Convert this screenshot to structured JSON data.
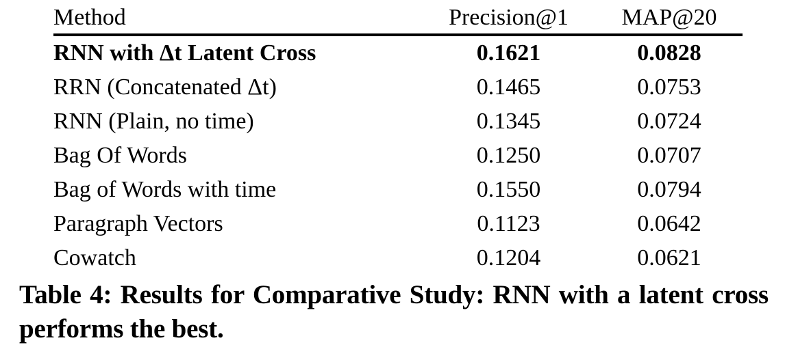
{
  "chart_data": {
    "type": "table",
    "columns": [
      "Method",
      "Precision@1",
      "MAP@20"
    ],
    "rows": [
      {
        "method": "RNN with Δt Latent Cross",
        "precision_at_1": "0.1621",
        "map_at_20": "0.0828",
        "bold": true
      },
      {
        "method": "RRN (Concatenated Δt)",
        "precision_at_1": "0.1465",
        "map_at_20": "0.0753",
        "bold": false
      },
      {
        "method": "RNN (Plain, no time)",
        "precision_at_1": "0.1345",
        "map_at_20": "0.0724",
        "bold": false
      },
      {
        "method": "Bag Of Words",
        "precision_at_1": "0.1250",
        "map_at_20": "0.0707",
        "bold": false
      },
      {
        "method": "Bag of Words with time",
        "precision_at_1": "0.1550",
        "map_at_20": "0.0794",
        "bold": false
      },
      {
        "method": "Paragraph Vectors",
        "precision_at_1": "0.1123",
        "map_at_20": "0.0642",
        "bold": false
      },
      {
        "method": "Cowatch",
        "precision_at_1": "0.1204",
        "map_at_20": "0.0621",
        "bold": false
      }
    ],
    "caption": "Table 4: Results for Comparative Study: RNN with a latent cross performs the best.",
    "title": "Results for Comparative Study",
    "highlight_best_row": "RNN with Δt Latent Cross"
  },
  "colors": {
    "text": "#000000",
    "background": "#ffffff",
    "rule": "#000000"
  }
}
